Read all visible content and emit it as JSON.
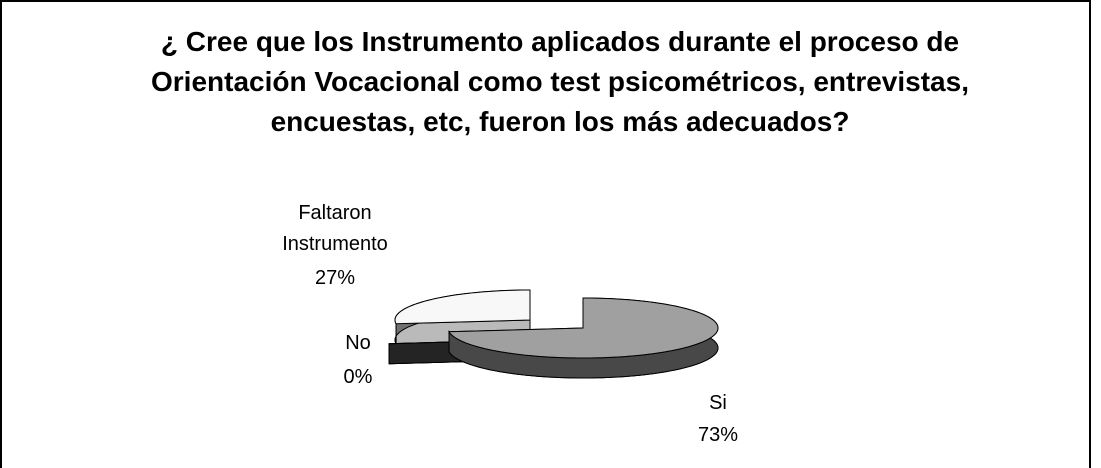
{
  "chart_data": {
    "type": "pie3d",
    "title": "¿ Cree que los Instrumento aplicados durante el proceso de Orientación Vocacional como test psicométricos, entrevistas, encuestas, etc, fueron los más adecuados?",
    "categories": [
      "Si",
      "No",
      "Faltaron Instrumento"
    ],
    "values": [
      73,
      0,
      27
    ],
    "value_labels": [
      "73%",
      "0%",
      "27%"
    ],
    "colors": [
      "#a0a0a0",
      "#303030",
      "#f8f8f8"
    ]
  }
}
